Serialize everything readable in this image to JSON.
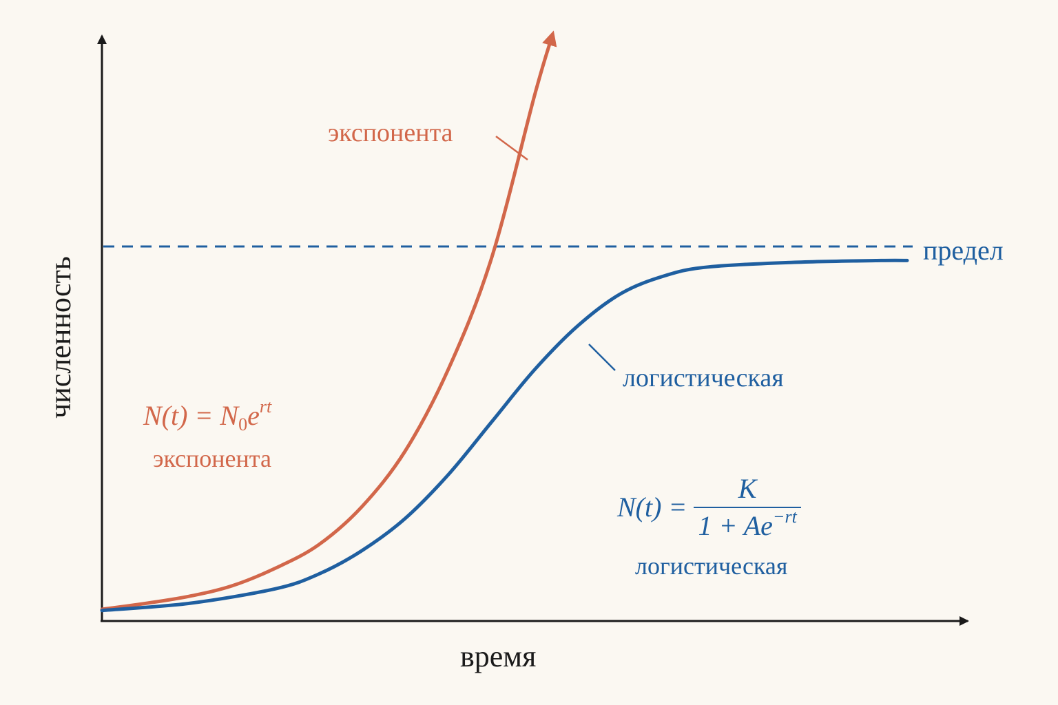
{
  "chart_data": {
    "type": "line",
    "xlabel": "время",
    "ylabel": "численность",
    "xlim": [
      0,
      10
    ],
    "ylim": [
      0,
      10
    ],
    "grid": false,
    "reference_line": {
      "label": "предел",
      "y": 6.4,
      "style": "dashed",
      "color": "#1f5fa0"
    },
    "series": [
      {
        "name": "экспонента",
        "color": "#d2674a",
        "formula": "N(t) = N0e^rt",
        "x": [
          0,
          0.5,
          1,
          1.5,
          2,
          2.5,
          3,
          3.5,
          4,
          4.5,
          5,
          5.2
        ],
        "y": [
          0.2,
          0.3,
          0.42,
          0.6,
          0.9,
          1.3,
          1.95,
          2.9,
          4.3,
          6.2,
          9.0,
          10.0
        ]
      },
      {
        "name": "логистическая",
        "color": "#1f5fa0",
        "formula": "N(t) = K / (1 + Ae^-rt)",
        "x": [
          0,
          1,
          2,
          2.5,
          3,
          3.5,
          4,
          4.5,
          5,
          5.5,
          6,
          6.5,
          7,
          8,
          9,
          9.3
        ],
        "y": [
          0.18,
          0.3,
          0.55,
          0.8,
          1.2,
          1.75,
          2.5,
          3.4,
          4.3,
          5.05,
          5.6,
          5.9,
          6.05,
          6.13,
          6.16,
          6.16
        ]
      }
    ],
    "annotations": {
      "exp_formula_parts": {
        "lhs": "N(t) = N",
        "sub": "0",
        "base": "e",
        "sup": "rt"
      },
      "log_formula_parts": {
        "lhs": "N(t) = ",
        "num": "K",
        "den": "1 + Ae",
        "sup": "−rt"
      }
    }
  }
}
